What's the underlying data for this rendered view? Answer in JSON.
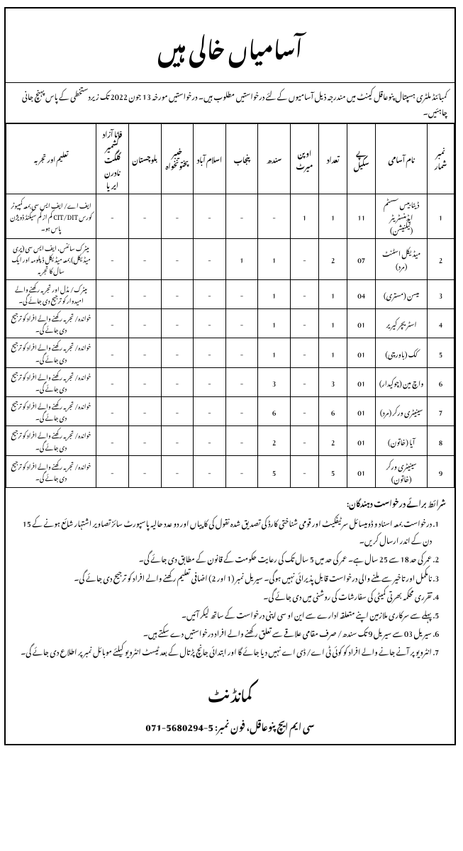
{
  "header": {
    "title": "آسامیاں خالـــی ہیں"
  },
  "intro": "کمبائنڈ ملٹری ہسپتال پنوعاقل کینٹ میں مندرجہ ذیل آسامیوں کے لئے درخواستیں مطلوب ہیں۔ درخواستیں مورخہ 13 جون 2022 تک زیردستخطی کے پاس پہنچ جانی چاہئیں۔",
  "columns": {
    "num": "نمبر شمار",
    "name": "نام آسامی",
    "scale": "پے سکیل",
    "count": "تعداد",
    "merit": "اوپن میرٹ",
    "sindh": "سندھ",
    "punjab": "پنجاب",
    "islamabad": "اسلام آباد",
    "kpk": "خیبر پختونخواہ",
    "balochistan": "بلوچستان",
    "fata": "فاٹا آزاد کشمیر گلگت نادرن ایریا",
    "edu": "تعلیم اور تجربہ"
  },
  "rows": [
    {
      "num": "1",
      "name": "ڈیٹا بیس سسٹم ایڈمنسٹریٹر (ٹیکنیشن)",
      "scale": "11",
      "count": "1",
      "merit": "1",
      "sindh": "-",
      "punjab": "-",
      "islamabad": "-",
      "kpk": "-",
      "balochistan": "-",
      "fata": "-",
      "edu": "ایف اے/ ایف ایس سی بمعہ کمپیوٹر کورس CIT/DIT کم از کم سیکنڈ ڈویژن پاس ہو۔"
    },
    {
      "num": "2",
      "name": "میڈیکل اسٹنٹ (مرد)",
      "scale": "07",
      "count": "2",
      "merit": "-",
      "sindh": "1",
      "punjab": "1",
      "islamabad": "-",
      "kpk": "-",
      "balochistan": "-",
      "fata": "-",
      "edu": "میٹرک سائنس، ایف ایس سی (پری میڈیکل) بمعہ میڈیکل ڈپلومہ اور ایک سال کا تجربہ"
    },
    {
      "num": "3",
      "name": "میسن (مستری)",
      "scale": "04",
      "count": "1",
      "merit": "-",
      "sindh": "1",
      "punjab": "-",
      "islamabad": "-",
      "kpk": "-",
      "balochistan": "-",
      "fata": "-",
      "edu": "میٹرک/ مڈل اور تجربہ رکھنے والے امیدوار کو ترجیح دی جائے گی۔"
    },
    {
      "num": "4",
      "name": "اسٹریچر کیریر",
      "scale": "01",
      "count": "1",
      "merit": "-",
      "sindh": "1",
      "punjab": "-",
      "islamabad": "-",
      "kpk": "-",
      "balochistan": "-",
      "fata": "-",
      "edu": "خواندہ/ تجربہ رکھنے والے افراد کو ترجیح دی جائے گی۔"
    },
    {
      "num": "5",
      "name": "کک (باورچی)",
      "scale": "01",
      "count": "1",
      "merit": "-",
      "sindh": "1",
      "punjab": "-",
      "islamabad": "-",
      "kpk": "-",
      "balochistan": "-",
      "fata": "-",
      "edu": "خواندہ/ تجربہ رکھنے والے افراد کو ترجیح دی جائے گی۔"
    },
    {
      "num": "6",
      "name": "واچ مین (چوکیدار)",
      "scale": "01",
      "count": "3",
      "merit": "-",
      "sindh": "3",
      "punjab": "-",
      "islamabad": "-",
      "kpk": "-",
      "balochistan": "-",
      "fata": "-",
      "edu": "خواندہ/ تجربہ رکھنے والے افراد کو ترجیح دی جائے گی۔"
    },
    {
      "num": "7",
      "name": "سینیٹری ورکر (مرد)",
      "scale": "01",
      "count": "6",
      "merit": "-",
      "sindh": "6",
      "punjab": "-",
      "islamabad": "-",
      "kpk": "-",
      "balochistan": "-",
      "fata": "-",
      "edu": "خواندہ/ تجربہ رکھنے والے افراد کو ترجیح دی جائے گی۔"
    },
    {
      "num": "8",
      "name": "آیا (خاتون)",
      "scale": "01",
      "count": "2",
      "merit": "-",
      "sindh": "2",
      "punjab": "-",
      "islamabad": "-",
      "kpk": "-",
      "balochistan": "-",
      "fata": "-",
      "edu": "خواندہ/ تجربہ رکھنے والے افراد کو ترجیح دی جائے گی۔"
    },
    {
      "num": "9",
      "name": "سینیٹری ورکر (خاتون)",
      "scale": "01",
      "count": "5",
      "merit": "-",
      "sindh": "5",
      "punjab": "-",
      "islamabad": "-",
      "kpk": "-",
      "balochistan": "-",
      "fata": "-",
      "edu": "خواندہ/ تجربہ رکھنے والے افراد کو ترجیح دی جائے گی۔"
    }
  ],
  "conditions": {
    "title": "شرائط برائے درخواست دہندگان:",
    "items": [
      "درخواست بمعہ اسناد و ڈومیسائل سرٹیفکیٹ اور قومی شناختی کارڈ کی تصدیق شدہ نقول کی کاپیاں اور دو عدد حالیہ پاسپورٹ سائز تصاویر اشتہار شائع ہونے کے 15 دن کے اندر ارسال کریں۔",
      "عمر کی حد 18 سے 25 سال ہے۔ عمر کی حد میں 5 سال تک کی رعایت حکومت کے قانون کے مطابق دی جائے گی۔",
      "نامکمل اور تاخیر سے ملنے والی درخواست قابل پذیرائی نہیں ہوگی۔ سیریل نمبر (1 اور 2) اضافی تعلیم رکھنے والے افراد کو ترجیح دی جائے گی۔",
      "تقرری محکمہ بھرتی کمیٹی کی سفارشات کی روشنی میں دی جائے گی۔",
      "پہلے سے سرکاری ملازمین اپنے متعلقہ ادارے سے این او سی اپنی درخواست کے ساتھ لیکر آئیں۔",
      "سیریل 03 سے سیریل 9 تک سندھ/ صرف مقامی علاقے سے تعلق رکھنے والے افراد درخواستیں دے سکتے ہیں۔",
      "انٹرویو پر آنے جانے والے افراد کو کوئی ٹی اے/ ڈی اے نہیں دیا جائے گا اور ابتدائی جانچ پڑتال کے بعد ٹیسٹ انٹرویو کیلئے موبائل نمبر پر اطلاع دی جائے گی۔"
    ]
  },
  "footer": {
    "title": "کمانڈنٹ",
    "contact": "سی ایم ایچ پنوعاقل، فون نمبر: 5-5680294-071"
  }
}
